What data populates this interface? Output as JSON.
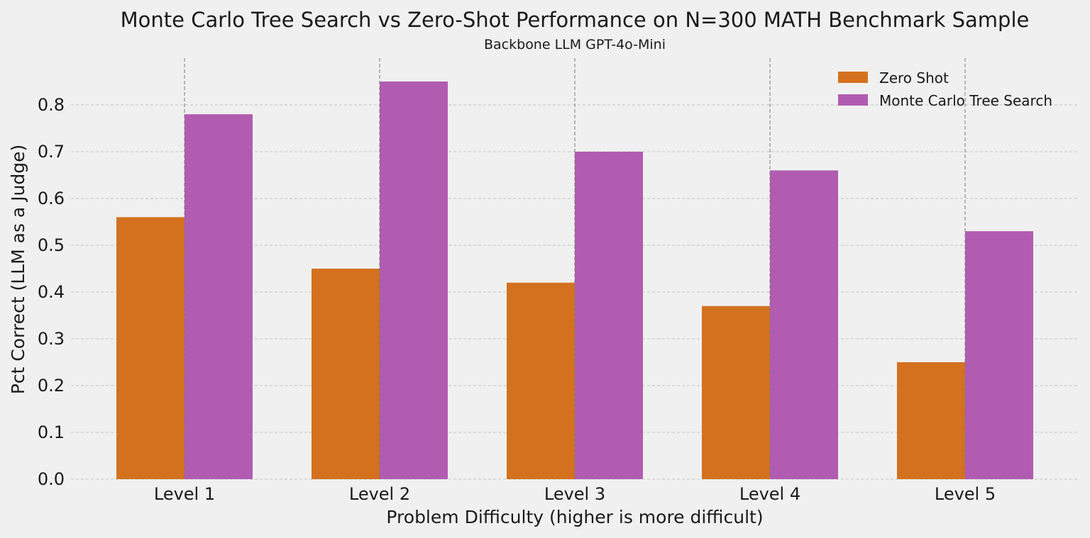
{
  "chart_data": {
    "type": "bar",
    "title": "Monte Carlo Tree Search vs Zero-Shot Performance on N=300 MATH Benchmark Sample",
    "subtitle": "Backbone LLM GPT-4o-Mini",
    "xlabel": "Problem Difficulty (higher is more difficult)",
    "ylabel": "Pct Correct (LLM as a Judge)",
    "categories": [
      "Level 1",
      "Level 2",
      "Level 3",
      "Level 4",
      "Level 5"
    ],
    "series": [
      {
        "name": "Zero Shot",
        "color": "#d4711e",
        "values": [
          0.56,
          0.45,
          0.42,
          0.37,
          0.25
        ]
      },
      {
        "name": "Monte Carlo Tree Search",
        "color": "#b15cb0",
        "values": [
          0.78,
          0.85,
          0.7,
          0.66,
          0.53
        ]
      }
    ],
    "ylim": [
      0,
      0.9
    ],
    "yticks": [
      0.0,
      0.1,
      0.2,
      0.3,
      0.4,
      0.5,
      0.6,
      0.7,
      0.8
    ],
    "ytick_labels": [
      "0.0",
      "0.1",
      "0.2",
      "0.3",
      "0.4",
      "0.5",
      "0.6",
      "0.7",
      "0.8"
    ],
    "grid": true,
    "legend_position": "top-right",
    "background": "#f0f0f0"
  }
}
